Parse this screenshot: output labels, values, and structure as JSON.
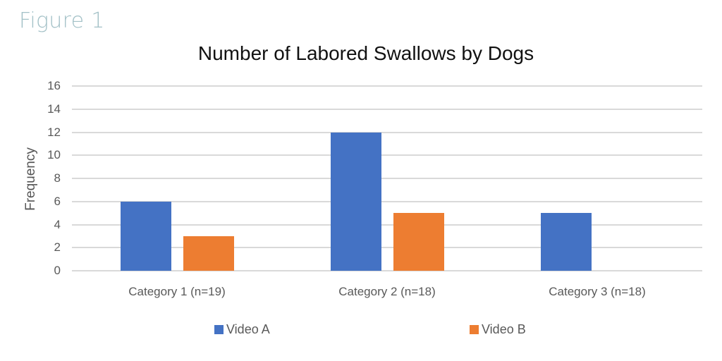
{
  "figure_label": "Figure 1",
  "colors": {
    "video_a": "#4472c4",
    "video_b": "#ed7d31",
    "grid": "#d9d9d9"
  },
  "chart_data": {
    "type": "bar",
    "title": "Number of Labored Swallows by Dogs",
    "xlabel": "",
    "ylabel": "Frequency",
    "ylim": [
      0,
      16
    ],
    "yticks": [
      0,
      2,
      4,
      6,
      8,
      10,
      12,
      14,
      16
    ],
    "grid": true,
    "legend_position": "bottom",
    "categories": [
      "Category 1 (n=19)",
      "Category 2 (n=18)",
      "Category 3 (n=18)"
    ],
    "series": [
      {
        "name": "Video A",
        "values": [
          6,
          12,
          5
        ]
      },
      {
        "name": "Video B",
        "values": [
          3,
          5,
          0
        ]
      }
    ]
  }
}
